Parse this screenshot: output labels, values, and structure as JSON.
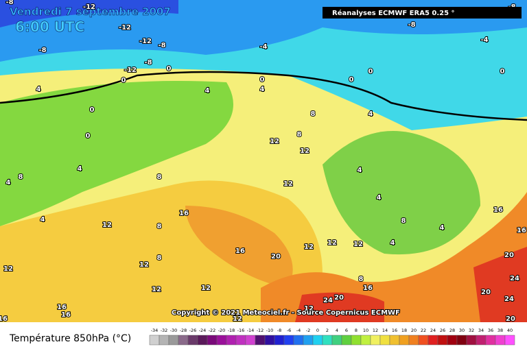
{
  "header": {
    "title": "Vendredi 7 septembre 2007",
    "time": "6:00 UTC",
    "source": "Réanalyses ECMWF ERA5 0.25 °"
  },
  "copyright": "Copyright © 2021 Meteociel.fr - Source Copernicus ECMWF",
  "contour_labels": [
    -8,
    -12,
    -12,
    -12,
    -8,
    -8,
    -8,
    -12,
    0,
    0,
    4,
    0,
    0,
    4,
    0,
    4,
    -4,
    0,
    0,
    0,
    -4,
    -8,
    -8,
    4,
    8,
    12,
    8,
    12,
    8,
    4,
    4,
    4,
    8,
    8,
    16,
    12,
    12,
    4,
    4,
    8,
    4,
    4,
    12,
    12,
    12,
    16,
    20,
    12,
    8,
    12,
    12,
    12,
    8,
    16,
    24,
    20,
    16,
    16,
    16,
    12,
    20,
    24,
    24,
    20,
    16,
    16,
    20,
    12
  ],
  "legend": {
    "title": "Température 850hPa (°C)",
    "values": [
      -34,
      -32,
      -30,
      -28,
      -26,
      -24,
      -22,
      -20,
      -18,
      -16,
      -14,
      -12,
      -10,
      -8,
      -6,
      -4,
      -2,
      0,
      2,
      4,
      6,
      8,
      10,
      12,
      14,
      16,
      18,
      20,
      22,
      24,
      26,
      28,
      30,
      32,
      34,
      36,
      38,
      40
    ],
    "colors": [
      "#d0d0d0",
      "#b4b4b4",
      "#9a9a9a",
      "#8a6a8a",
      "#6a3a6a",
      "#5a1a5a",
      "#7a0a7a",
      "#9a109a",
      "#b020b0",
      "#c030c0",
      "#d040d0",
      "#501070",
      "#3010a0",
      "#2020d0",
      "#2040f0",
      "#2070f0",
      "#20a0f0",
      "#20d0f0",
      "#30e0c0",
      "#40d080",
      "#60d040",
      "#90e030",
      "#c0f040",
      "#f0f060",
      "#f0e040",
      "#f0c030",
      "#f0a020",
      "#f08020",
      "#f05020",
      "#e02020",
      "#c01010",
      "#a00010",
      "#800010",
      "#a01040",
      "#c02070",
      "#e030a0",
      "#f040d0",
      "#ff50ff"
    ]
  }
}
